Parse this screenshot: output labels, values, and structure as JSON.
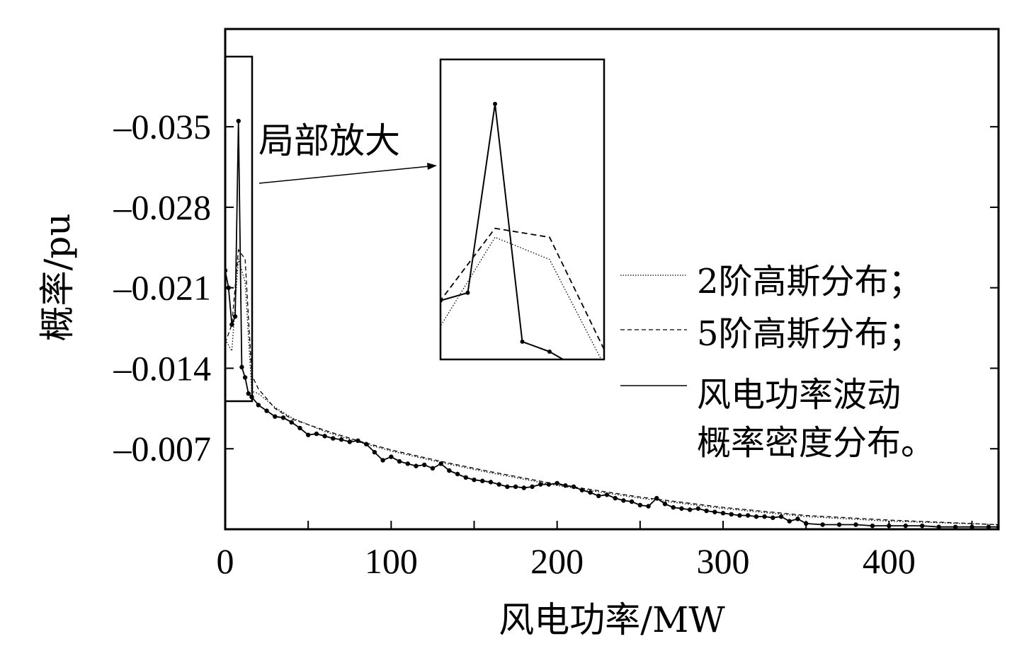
{
  "chart_data": {
    "type": "line",
    "xlabel": "风电功率/MW",
    "ylabel": "概率/pu",
    "xlim": [
      0,
      466
    ],
    "ylim": [
      0,
      -0.0435
    ],
    "x_ticks": [
      0,
      100,
      200,
      300,
      400
    ],
    "x_tick_labels": [
      "0",
      "100",
      "200",
      "300",
      "400"
    ],
    "y_ticks": [
      -0.007,
      -0.014,
      -0.021,
      -0.028,
      -0.035
    ],
    "y_tick_labels": [
      "–0.007",
      "–0.014",
      "–0.021",
      "–0.028",
      "–0.035"
    ],
    "grid": false,
    "legend_position": "right",
    "annotation": "局部放大",
    "series": [
      {
        "name": "2阶高斯分布；",
        "style": "dotted",
        "x": [
          0,
          4,
          8,
          12,
          16,
          20,
          30,
          40,
          60,
          80,
          100,
          130,
          160,
          200,
          250,
          300,
          350,
          400,
          466
        ],
        "y": [
          -0.0165,
          -0.0155,
          -0.0235,
          -0.0215,
          -0.012,
          -0.0118,
          -0.0106,
          -0.0097,
          -0.0085,
          -0.0076,
          -0.0068,
          -0.0058,
          -0.0049,
          -0.0038,
          -0.0027,
          -0.0018,
          -0.0011,
          -0.0007,
          -0.0004
        ]
      },
      {
        "name": "5阶高斯分布；",
        "style": "dashed",
        "x": [
          0,
          4,
          8,
          12,
          16,
          20,
          30,
          40,
          60,
          80,
          100,
          130,
          160,
          200,
          250,
          300,
          350,
          400,
          466
        ],
        "y": [
          -0.0162,
          -0.0178,
          -0.0243,
          -0.0235,
          -0.0134,
          -0.0122,
          -0.0105,
          -0.0096,
          -0.0086,
          -0.0077,
          -0.0069,
          -0.0059,
          -0.005,
          -0.0039,
          -0.0028,
          -0.0019,
          -0.0012,
          -0.0008,
          -0.0004
        ]
      },
      {
        "name": "风电功率波动\n概率密度分布。",
        "style": "solid-markers",
        "x": [
          0,
          2,
          4,
          6,
          8,
          10,
          12,
          14,
          16,
          20,
          25,
          30,
          35,
          40,
          45,
          50,
          55,
          60,
          65,
          70,
          75,
          80,
          85,
          90,
          95,
          100,
          105,
          110,
          115,
          120,
          125,
          130,
          135,
          140,
          145,
          150,
          155,
          160,
          165,
          170,
          175,
          180,
          185,
          190,
          195,
          200,
          205,
          210,
          215,
          220,
          225,
          230,
          235,
          240,
          245,
          250,
          255,
          260,
          265,
          270,
          275,
          280,
          285,
          290,
          295,
          300,
          305,
          310,
          315,
          320,
          325,
          330,
          335,
          340,
          345,
          350,
          360,
          370,
          380,
          390,
          400,
          410,
          420,
          430,
          440,
          450,
          460,
          466
        ],
        "y": [
          -0.0225,
          -0.021,
          -0.0178,
          -0.0185,
          -0.0355,
          -0.0141,
          -0.0132,
          -0.0118,
          -0.0115,
          -0.0108,
          -0.0103,
          -0.0098,
          -0.0097,
          -0.0093,
          -0.0088,
          -0.0082,
          -0.0083,
          -0.0081,
          -0.0079,
          -0.0078,
          -0.0076,
          -0.0077,
          -0.0074,
          -0.0067,
          -0.006,
          -0.0063,
          -0.0059,
          -0.0057,
          -0.0055,
          -0.0056,
          -0.0053,
          -0.0057,
          -0.0051,
          -0.0048,
          -0.0045,
          -0.0043,
          -0.0042,
          -0.0041,
          -0.0039,
          -0.0037,
          -0.0037,
          -0.0036,
          -0.0037,
          -0.0039,
          -0.0039,
          -0.004,
          -0.0038,
          -0.0037,
          -0.0034,
          -0.0032,
          -0.0029,
          -0.003,
          -0.0027,
          -0.0025,
          -0.0024,
          -0.0021,
          -0.002,
          -0.0027,
          -0.0022,
          -0.0019,
          -0.0018,
          -0.0017,
          -0.0018,
          -0.0016,
          -0.0015,
          -0.0014,
          -0.0013,
          -0.0012,
          -0.0012,
          -0.0011,
          -0.0011,
          -0.001,
          -0.0011,
          -0.0007,
          -0.0009,
          -0.0005,
          -0.0004,
          -0.0004,
          -0.0004,
          -0.0003,
          -0.0003,
          -0.0003,
          -0.0003,
          -0.0002,
          -0.0002,
          -0.0002,
          -0.0002,
          -0.0002
        ]
      }
    ]
  }
}
